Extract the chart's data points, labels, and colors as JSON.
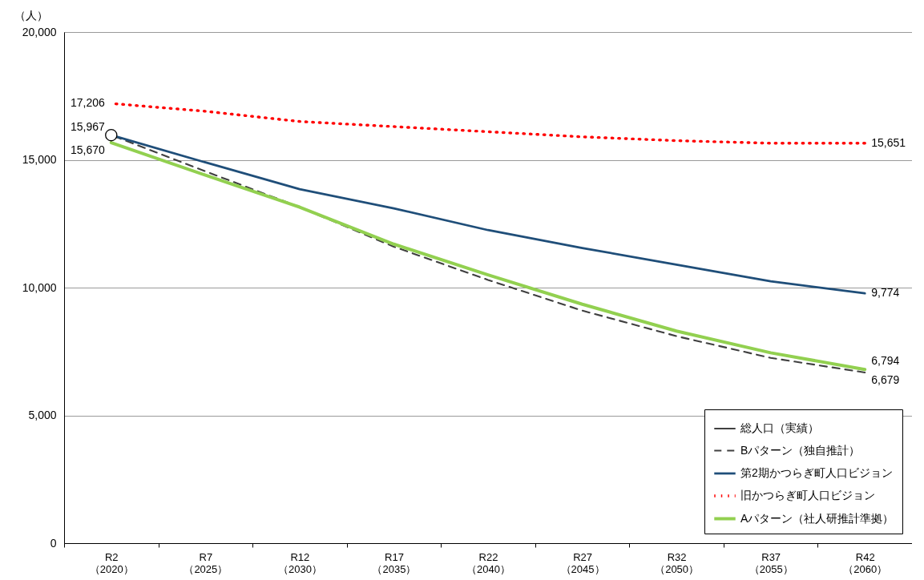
{
  "chart_data": {
    "type": "line",
    "ylabel": "（人）",
    "categories": [
      "R2\n（2020）",
      "R7\n（2025）",
      "R12\n（2030）",
      "R17\n（2035）",
      "R22\n（2040）",
      "R27\n（2045）",
      "R32\n（2050）",
      "R37\n（2055）",
      "R42\n（2060）"
    ],
    "ylim": [
      0,
      20000
    ],
    "yticks": [
      {
        "value": 0,
        "label": "0"
      },
      {
        "value": 5000,
        "label": "5,000"
      },
      {
        "value": 10000,
        "label": "10,000"
      },
      {
        "value": 15000,
        "label": "15,000"
      },
      {
        "value": 20000,
        "label": "20,000"
      }
    ],
    "grid": "y",
    "legend": "bottom right",
    "series": [
      {
        "name": "総人口（実績）",
        "color": "#000000",
        "marker": "circle",
        "values": [
          15967,
          null,
          null,
          null,
          null,
          null,
          null,
          null,
          null
        ],
        "value_labels": [
          "15,967",
          null,
          null,
          null,
          null,
          null,
          null,
          null,
          null
        ]
      },
      {
        "name": "Bパターン（独自推計）",
        "color": "#404040",
        "line_style": "dashed",
        "values": [
          15967,
          14550,
          13150,
          11600,
          10300,
          9100,
          8100,
          7250,
          6679
        ],
        "value_labels": [
          null,
          null,
          null,
          null,
          null,
          null,
          null,
          null,
          "6,679"
        ]
      },
      {
        "name": "第2期かつらぎ町人口ビジョン",
        "color": "#1f4e79",
        "line_style": "solid",
        "values": [
          15967,
          14900,
          13850,
          13100,
          12250,
          11550,
          10900,
          10250,
          9774
        ],
        "value_labels": [
          null,
          null,
          null,
          null,
          null,
          null,
          null,
          null,
          "9,774"
        ]
      },
      {
        "name": "旧かつらぎ町人口ビジョン",
        "color": "#ff0000",
        "line_style": "dotted",
        "values": [
          17206,
          16900,
          16500,
          16300,
          16100,
          15900,
          15750,
          15650,
          15651
        ],
        "value_labels": [
          "17,206",
          null,
          null,
          null,
          null,
          null,
          null,
          null,
          "15,651"
        ]
      },
      {
        "name": "Aパターン（社人研推計準拠）",
        "color": "#92d050",
        "line_style": "solid",
        "values": [
          15670,
          14400,
          13150,
          11700,
          10500,
          9350,
          8300,
          7450,
          6794
        ],
        "value_labels": [
          "15,670",
          null,
          null,
          null,
          null,
          null,
          null,
          null,
          "6,794"
        ]
      }
    ]
  }
}
